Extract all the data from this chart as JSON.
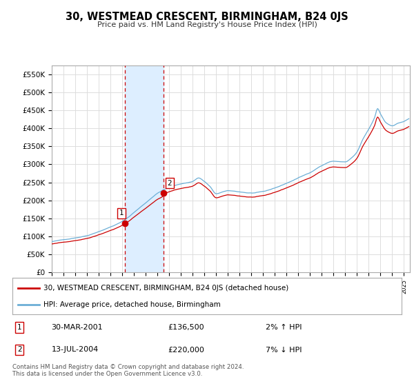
{
  "title": "30, WESTMEAD CRESCENT, BIRMINGHAM, B24 0JS",
  "subtitle": "Price paid vs. HM Land Registry's House Price Index (HPI)",
  "legend_line1": "30, WESTMEAD CRESCENT, BIRMINGHAM, B24 0JS (detached house)",
  "legend_line2": "HPI: Average price, detached house, Birmingham",
  "transaction1_date": "30-MAR-2001",
  "transaction1_price": "£136,500",
  "transaction1_hpi": "2% ↑ HPI",
  "transaction1_year": 2001.25,
  "transaction1_value": 136500,
  "transaction2_date": "13-JUL-2004",
  "transaction2_price": "£220,000",
  "transaction2_hpi": "7% ↓ HPI",
  "transaction2_year": 2004.54,
  "transaction2_value": 220000,
  "hpi_color": "#6baed6",
  "price_color": "#cc0000",
  "shading_color": "#ddeeff",
  "vline_color": "#cc0000",
  "grid_color": "#dddddd",
  "ylim": [
    0,
    575000
  ],
  "yticks": [
    0,
    50000,
    100000,
    150000,
    200000,
    250000,
    300000,
    350000,
    400000,
    450000,
    500000,
    550000
  ],
  "footer": "Contains HM Land Registry data © Crown copyright and database right 2024.\nThis data is licensed under the Open Government Licence v3.0.",
  "xmin": 1995.0,
  "xmax": 2025.5
}
